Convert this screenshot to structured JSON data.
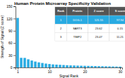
{
  "chart_data": {
    "type": "bar",
    "title": "Human Protein Microarray Specificity Validation",
    "x_label": "Signal Rank",
    "y_label": "Strength of Signal (Z score)",
    "x": [
      1,
      2,
      3,
      4,
      5,
      6,
      7,
      8,
      9,
      10,
      11,
      12,
      13,
      14,
      15,
      16,
      17,
      18,
      19,
      20,
      21,
      22,
      23,
      24,
      25,
      26,
      27,
      28,
      29,
      30
    ],
    "values": [
      121.55,
      23.62,
      23.47,
      20.0,
      17.0,
      14.5,
      12.5,
      11.0,
      9.5,
      8.5,
      7.5,
      7.0,
      6.5,
      6.0,
      5.5,
      5.0,
      4.8,
      4.5,
      4.2,
      4.0,
      3.8,
      3.6,
      3.4,
      3.2,
      3.0,
      2.8,
      2.6,
      2.4,
      2.2,
      2.0
    ],
    "color": "#29abe2",
    "xlim": [
      0.4,
      30.6
    ],
    "xticks": [
      1,
      10,
      20,
      30
    ],
    "ylim": [
      0,
      150
    ],
    "yticks": [
      0,
      30,
      60,
      90,
      120,
      150
    ],
    "grid": false,
    "table": {
      "headers": [
        "Rank",
        "Protein",
        "Z score",
        "S score"
      ],
      "rows": [
        [
          "1",
          "DOG-1",
          "121.55",
          "97.94"
        ],
        [
          "2",
          "SART3",
          "23.62",
          "0.15"
        ],
        [
          "3",
          "TIMP2",
          "23.47",
          "11.21"
        ]
      ]
    }
  }
}
